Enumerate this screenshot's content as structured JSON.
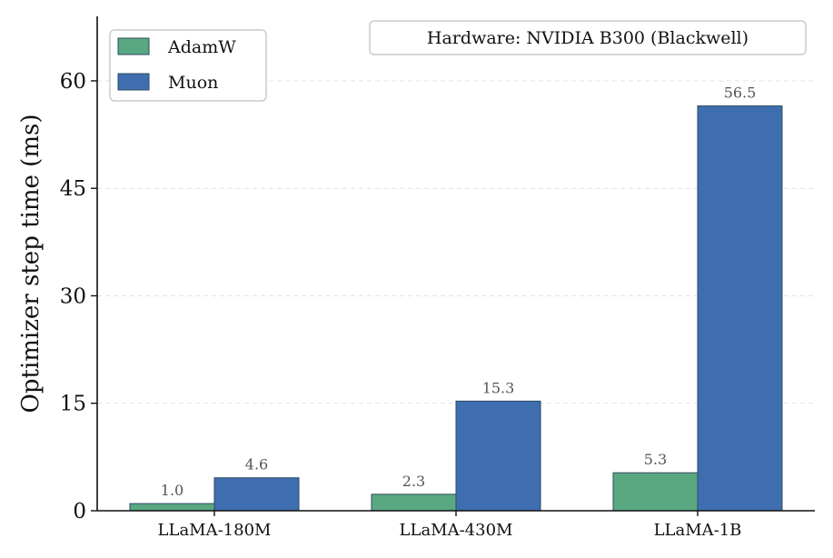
{
  "chart_data": {
    "type": "bar",
    "categories": [
      "LLaMA-180M",
      "LLaMA-430M",
      "LLaMA-1B"
    ],
    "series": [
      {
        "name": "AdamW",
        "values": [
          1.0,
          2.3,
          5.3
        ],
        "color": "#5aa882"
      },
      {
        "name": "Muon",
        "values": [
          4.6,
          15.3,
          56.5
        ],
        "color": "#3f6eb0"
      }
    ],
    "value_labels": [
      [
        "1.0",
        "2.3",
        "5.3"
      ],
      [
        "4.6",
        "15.3",
        "56.5"
      ]
    ],
    "ylabel": "Optimizer step time (ms)",
    "ylim": [
      0,
      69
    ],
    "yticks": [
      0,
      15,
      30,
      45,
      60
    ],
    "ytick_labels": [
      "0",
      "15",
      "30",
      "45",
      "60"
    ],
    "grid": "horizontal dashed",
    "legend_position": "top-left",
    "annotation": "Hardware: NVIDIA B300 (Blackwell)"
  },
  "colors": {
    "adamw": "#5aa882",
    "muon": "#3f6eb0",
    "edge": "#2e4a5f",
    "grid": "#e2e2e2",
    "value_label": "#555555"
  }
}
